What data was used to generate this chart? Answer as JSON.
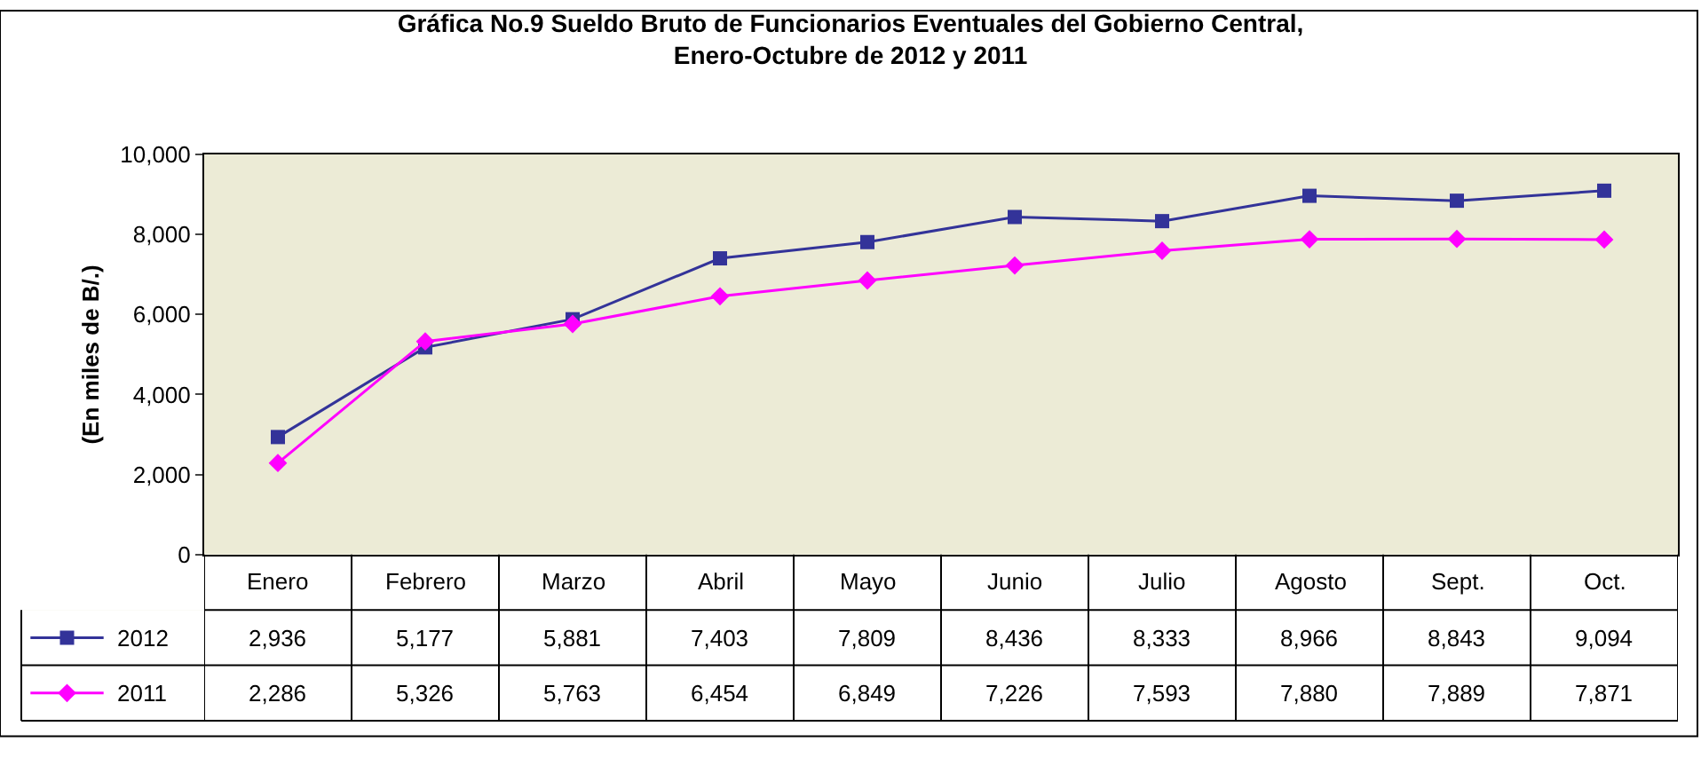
{
  "chart_data": {
    "type": "line",
    "title": "Gráfica No.9 Sueldo Bruto de Funcionarios Eventuales del Gobierno Central,\nEnero-Octubre de 2012 y 2011",
    "ylabel": "(En miles de B/.)",
    "categories": [
      "Enero",
      "Febrero",
      "Marzo",
      "Abril",
      "Mayo",
      "Junio",
      "Julio",
      "Agosto",
      "Sept.",
      "Oct."
    ],
    "series": [
      {
        "name": "2012",
        "color": "#333399",
        "marker": "square",
        "values": [
          2936,
          5177,
          5881,
          7403,
          7809,
          8436,
          8333,
          8966,
          8843,
          9094
        ],
        "value_labels": [
          "2,936",
          "5,177",
          "5,881",
          "7,403",
          "7,809",
          "8,436",
          "8,333",
          "8,966",
          "8,843",
          "9,094"
        ]
      },
      {
        "name": "2011",
        "color": "#ff00ff",
        "marker": "diamond",
        "values": [
          2286,
          5326,
          5763,
          6454,
          6849,
          7226,
          7593,
          7880,
          7889,
          7871
        ],
        "value_labels": [
          "2,286",
          "5,326",
          "5,763",
          "6,454",
          "6,849",
          "7,226",
          "7,593",
          "7,880",
          "7,889",
          "7,871"
        ]
      }
    ],
    "ylim": [
      0,
      10000
    ],
    "yticks": [
      0,
      {
        "value": 2000,
        "label": "2,000"
      },
      {
        "value": 4000,
        "label": "4,000"
      },
      {
        "value": 6000,
        "label": "6,000"
      },
      {
        "value": 8000,
        "label": "8,000"
      },
      {
        "value": 10000,
        "label": "10,000"
      }
    ],
    "grid": false,
    "legend": "bottom left",
    "line_style": "solid"
  }
}
